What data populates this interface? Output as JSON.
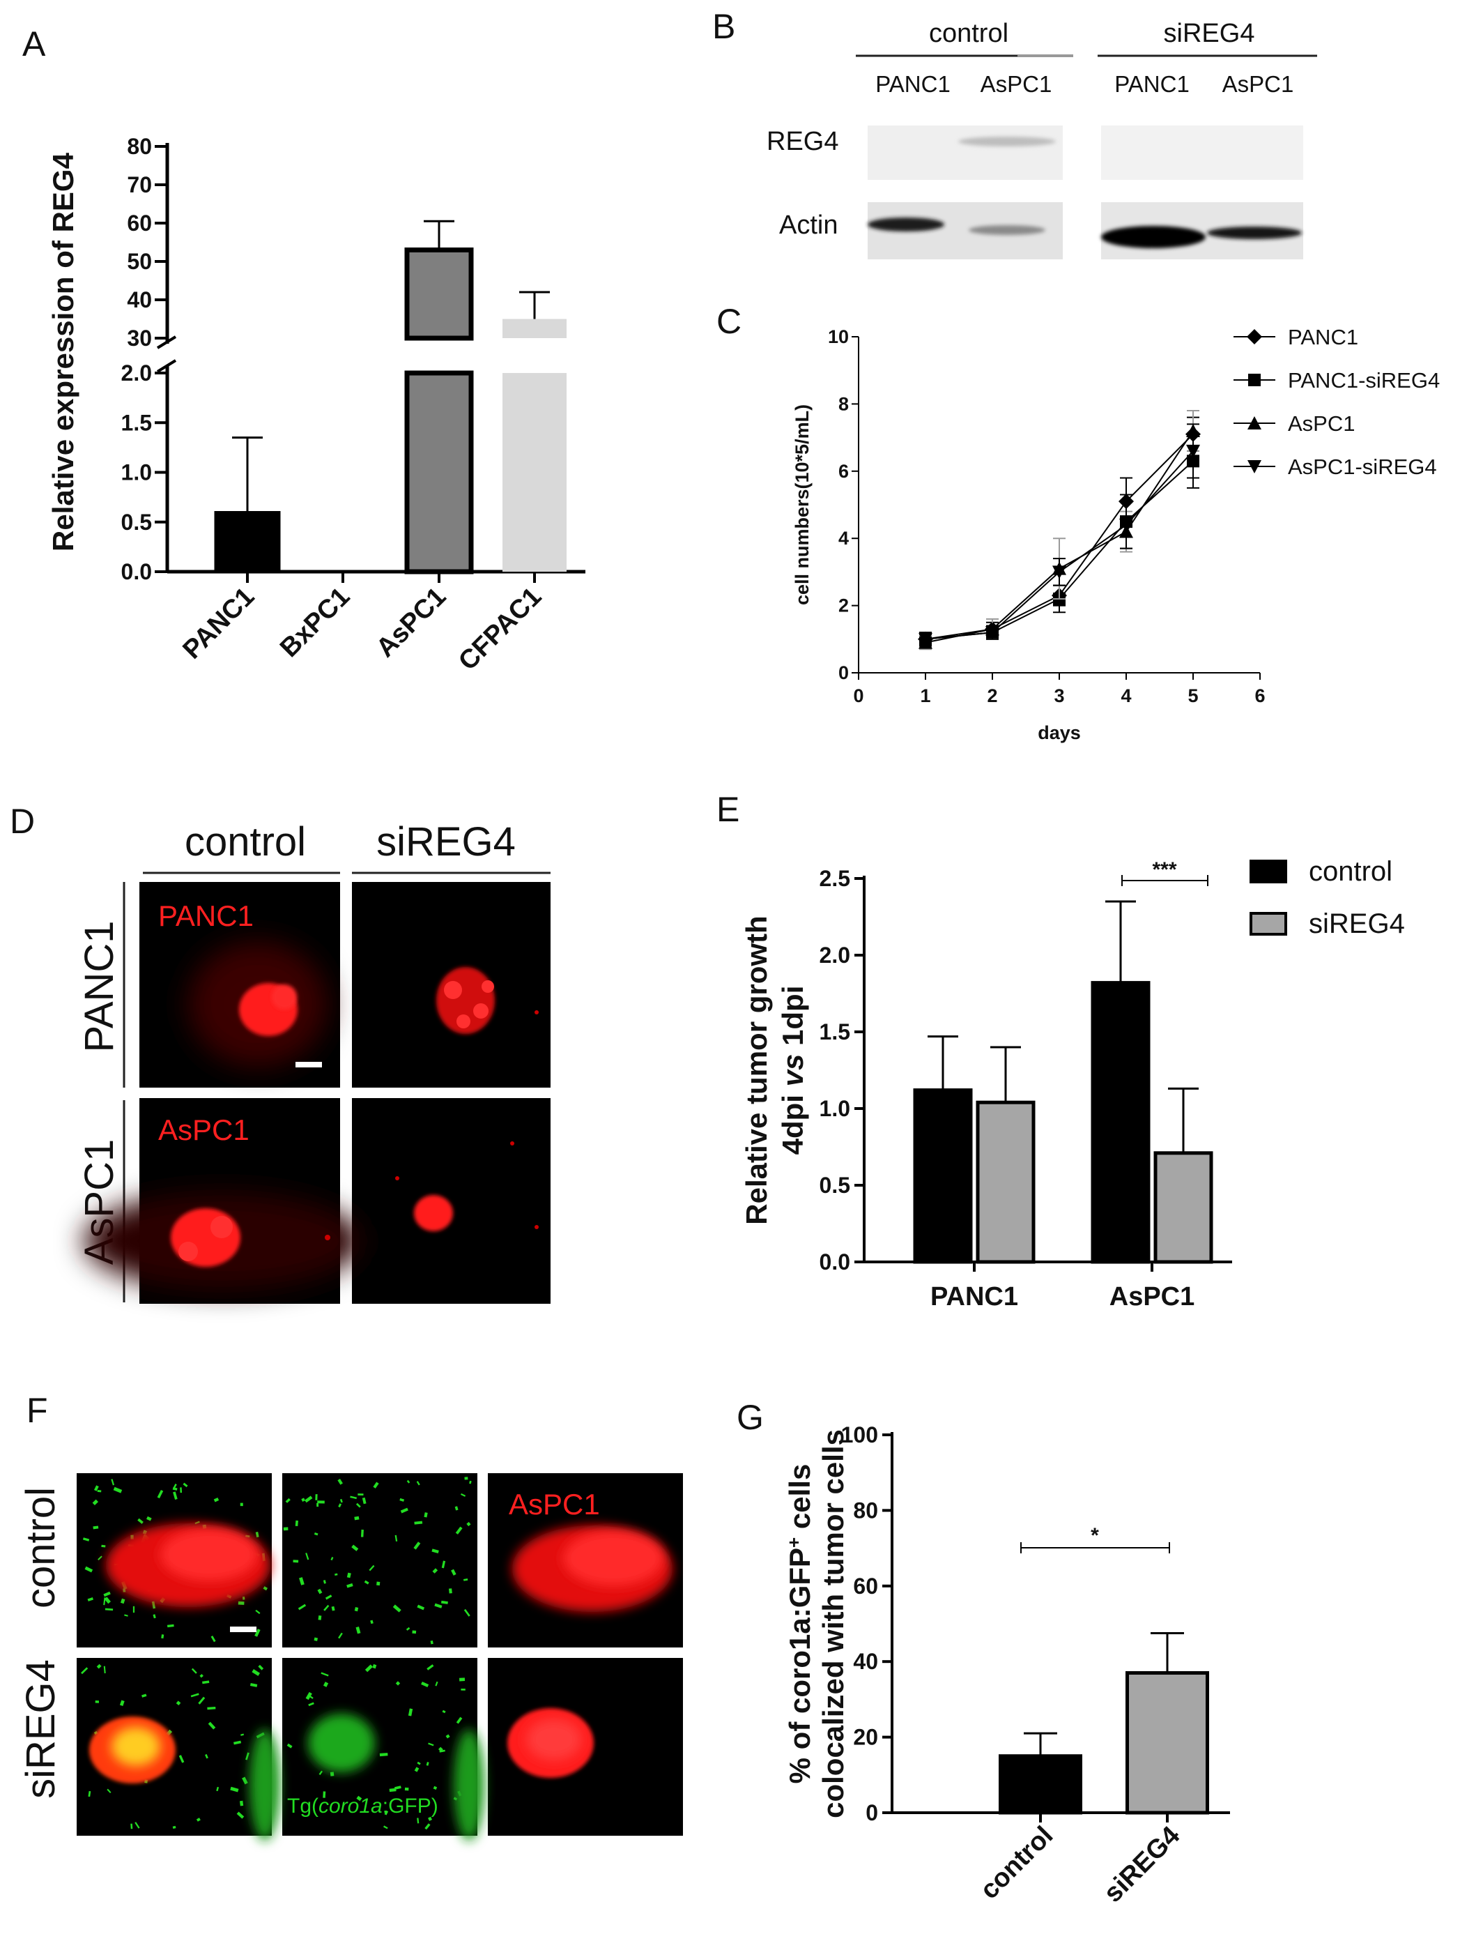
{
  "panels": {
    "A": "A",
    "B": "B",
    "C": "C",
    "D": "D",
    "E": "E",
    "F": "F",
    "G": "G"
  },
  "colors": {
    "black_bar": "#000000",
    "dark_grey_bar": "#7f7f7f",
    "light_grey_bar": "#d9d9d9",
    "mid_grey_bar": "#a6a6a6",
    "tumor_red": "#ff1a1a",
    "gfp_green": "#22dd22"
  },
  "blot": {
    "group_labels": [
      "control",
      "siREG4"
    ],
    "lane_labels": [
      "PANC1",
      "AsPC1",
      "PANC1",
      "AsPC1"
    ],
    "row_labels": [
      "REG4",
      "Actin"
    ]
  },
  "micro_D": {
    "col_headers": [
      "control",
      "siREG4"
    ],
    "row_labels": [
      "PANC1",
      "AsPC1"
    ],
    "cell_labels": [
      "PANC1",
      "AsPC1"
    ]
  },
  "micro_F": {
    "row_labels": [
      "control",
      "siREG4"
    ],
    "label_aspc1": "AsPC1",
    "label_tg_prefix": "Tg(",
    "label_tg_gene": "coro1a",
    "label_tg_suffix": ":GFP)"
  },
  "chart_data": [
    {
      "panel": "A",
      "type": "bar",
      "ylabel": "Relative expression of REG4",
      "categories": [
        "PANC1",
        "BxPC1",
        "AsPC1",
        "CFPAC1"
      ],
      "values": [
        0.6,
        0.0,
        53,
        35
      ],
      "errors": [
        0.75,
        0,
        7.5,
        7
      ],
      "bar_colors": [
        "#000000",
        "#000000",
        "#7f7f7f",
        "#d9d9d9"
      ],
      "y_lower_ticks": [
        "0.0",
        "0.5",
        "1.0",
        "1.5",
        "2.0"
      ],
      "y_upper_ticks": [
        "30",
        "40",
        "50",
        "60",
        "70",
        "80"
      ],
      "axis_break": [
        2.0,
        30
      ],
      "ylim_lower": [
        0,
        2.0
      ],
      "ylim_upper": [
        30,
        80
      ]
    },
    {
      "panel": "C",
      "type": "line",
      "xlabel": "days",
      "ylabel": "cell numbers(10*5/mL)",
      "x": [
        1,
        2,
        3,
        4,
        5
      ],
      "xlim": [
        0,
        6
      ],
      "ylim": [
        0,
        10
      ],
      "x_ticks": [
        "0",
        "1",
        "2",
        "3",
        "4",
        "5",
        "6"
      ],
      "y_ticks": [
        "0",
        "2",
        "4",
        "6",
        "8",
        "10"
      ],
      "legend_position": "top-right",
      "series": [
        {
          "name": "PANC1",
          "marker": "diamond",
          "values": [
            1.0,
            1.3,
            2.3,
            5.1,
            7.1
          ],
          "errors": [
            0.2,
            0.2,
            0.3,
            0.7,
            0.5
          ]
        },
        {
          "name": "PANC1-siREG4",
          "marker": "square",
          "values": [
            1.0,
            1.2,
            2.2,
            4.5,
            6.3
          ],
          "errors": [
            0.2,
            0.2,
            0.4,
            0.8,
            0.8
          ]
        },
        {
          "name": "AsPC1",
          "marker": "triangle-up",
          "values": [
            0.9,
            1.3,
            3.1,
            4.2,
            7.2
          ],
          "errors": [
            0.2,
            0.3,
            0.9,
            0.6,
            0.6
          ]
        },
        {
          "name": "AsPC1-siREG4",
          "marker": "triangle-down",
          "values": [
            1.0,
            1.2,
            3.0,
            4.4,
            6.6
          ],
          "errors": [
            0.2,
            0.2,
            0.4,
            0.7,
            0.8
          ]
        }
      ]
    },
    {
      "panel": "E",
      "type": "bar",
      "ylabel_line1": "Relative tumor growth",
      "ylabel_line2_a": "4dpi ",
      "ylabel_line2_b": "vs",
      "ylabel_line2_c": " 1dpi",
      "categories": [
        "PANC1",
        "AsPC1"
      ],
      "ylim": [
        0,
        2.5
      ],
      "y_ticks": [
        "0.0",
        "0.5",
        "1.0",
        "1.5",
        "2.0",
        "2.5"
      ],
      "legend_position": "top-right",
      "series": [
        {
          "name": "control",
          "color": "#000000",
          "values": [
            1.12,
            1.82
          ],
          "errors": [
            0.35,
            0.53
          ]
        },
        {
          "name": "siREG4",
          "color": "#a6a6a6",
          "values": [
            1.04,
            0.71
          ],
          "errors": [
            0.36,
            0.42
          ]
        }
      ],
      "significance": "***"
    },
    {
      "panel": "G",
      "type": "bar",
      "ylabel_line1_a": "% of coro1a:GFP",
      "ylabel_line1_sup": "+",
      "ylabel_line1_b": " cells",
      "ylabel_line2": "colocalized with tumor cells",
      "categories": [
        "control",
        "siREG4"
      ],
      "values": [
        15,
        37
      ],
      "errors": [
        6,
        10.5
      ],
      "bar_colors": [
        "#000000",
        "#a6a6a6"
      ],
      "ylim": [
        0,
        100
      ],
      "y_ticks": [
        "0",
        "20",
        "40",
        "60",
        "80",
        "100"
      ],
      "significance": "*"
    }
  ]
}
